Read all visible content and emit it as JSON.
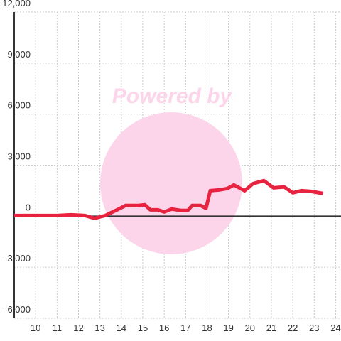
{
  "chart_data": {
    "type": "line",
    "watermark": "Powered by",
    "x": [
      9,
      11,
      11.65,
      12.3,
      12.75,
      13.25,
      13.8,
      14.2,
      14.8,
      15.1,
      15.35,
      15.7,
      16.0,
      16.35,
      16.8,
      17.1,
      17.3,
      17.7,
      17.95,
      18.15,
      18.6,
      18.95,
      19.25,
      19.75,
      20.15,
      20.65,
      21.1,
      21.6,
      22.0,
      22.4,
      22.85,
      23.4
    ],
    "series": [
      {
        "color": "#e8233f",
        "values": [
          40,
          40,
          80,
          40,
          -125,
          40,
          375,
          630,
          630,
          670,
          375,
          375,
          250,
          420,
          335,
          335,
          630,
          630,
          460,
          1500,
          1550,
          1630,
          1840,
          1500,
          1920,
          2090,
          1670,
          1720,
          1380,
          1500,
          1460,
          1340
        ]
      }
    ],
    "xlim": [
      9,
      24.25
    ],
    "xticks": [
      10,
      11,
      12,
      13,
      14,
      15,
      16,
      17,
      18,
      19,
      20,
      21,
      22,
      23,
      24
    ],
    "ylim": [
      -6000,
      12000
    ],
    "yticks": [
      {
        "value": -6000,
        "label": "-6,000"
      },
      {
        "value": -3000,
        "label": "-3,000"
      },
      0,
      {
        "value": 3000,
        "label": "3,000"
      },
      {
        "value": 6000,
        "label": "6,000"
      },
      {
        "value": 9000,
        "label": "9,000"
      },
      {
        "value": 12000,
        "label": "12,000"
      }
    ],
    "grid": true
  }
}
